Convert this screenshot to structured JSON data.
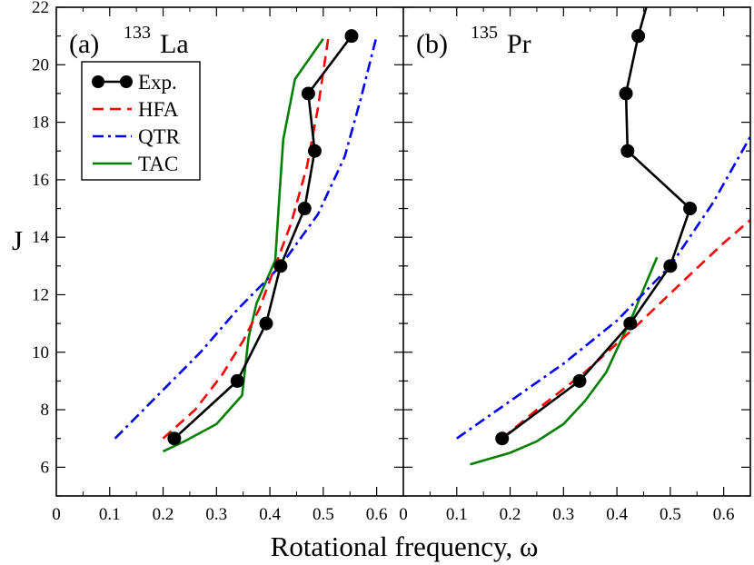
{
  "chart_data": {
    "type": "line",
    "xlabel": "Rotational frequency, ω",
    "ylabel": "J",
    "ylim": [
      5,
      22
    ],
    "y_ticks": [
      6,
      8,
      10,
      12,
      14,
      16,
      18,
      20,
      22
    ],
    "x_tick_values": [
      0,
      0.1,
      0.2,
      0.3,
      0.4,
      0.5,
      0.6
    ],
    "x_tick_labels": [
      "0",
      "0.1",
      "0.2",
      "0.3",
      "0.4",
      "0.5",
      "0.6"
    ],
    "legend": {
      "placement": "top-left of panel (a)",
      "entries": [
        {
          "name": "Exp.",
          "color": "#000000",
          "style": "solid-markers"
        },
        {
          "name": "HFA",
          "color": "#ff0000",
          "style": "dashed"
        },
        {
          "name": "QTR",
          "color": "#0000ff",
          "style": "dashdot"
        },
        {
          "name": "TAC",
          "color": "#008000",
          "style": "solid"
        }
      ]
    },
    "panels": [
      {
        "id": "a",
        "tag": "(a)",
        "mass": "133",
        "nucleus": "La",
        "xlim": [
          0,
          0.65
        ],
        "series": [
          {
            "name": "Exp.",
            "color": "#000000",
            "style": "solid-markers",
            "points": [
              [
                0.221,
                7
              ],
              [
                0.339,
                9
              ],
              [
                0.393,
                11
              ],
              [
                0.42,
                13
              ],
              [
                0.465,
                15
              ],
              [
                0.484,
                17
              ],
              [
                0.472,
                19
              ],
              [
                0.553,
                21
              ]
            ]
          },
          {
            "name": "HFA",
            "color": "#ff0000",
            "style": "dashed",
            "points": [
              [
                0.2,
                7
              ],
              [
                0.26,
                8
              ],
              [
                0.31,
                9.2
              ],
              [
                0.35,
                10.4
              ],
              [
                0.38,
                11.5
              ],
              [
                0.41,
                13
              ],
              [
                0.44,
                14.5
              ],
              [
                0.47,
                16.5
              ],
              [
                0.49,
                18.5
              ],
              [
                0.51,
                21
              ]
            ]
          },
          {
            "name": "QTR",
            "color": "#0000ff",
            "style": "dashdot",
            "points": [
              [
                0.11,
                7
              ],
              [
                0.19,
                8.5
              ],
              [
                0.27,
                10
              ],
              [
                0.34,
                11.5
              ],
              [
                0.42,
                13
              ],
              [
                0.49,
                14.8
              ],
              [
                0.54,
                16.8
              ],
              [
                0.57,
                18.8
              ],
              [
                0.6,
                21
              ]
            ]
          },
          {
            "name": "TAC",
            "color": "#008000",
            "style": "solid",
            "points": [
              [
                0.2,
                6.55
              ],
              [
                0.24,
                6.9
              ],
              [
                0.3,
                7.5
              ],
              [
                0.348,
                8.5
              ],
              [
                0.36,
                10.5
              ],
              [
                0.375,
                11.7
              ],
              [
                0.41,
                13.2
              ],
              [
                0.418,
                15.5
              ],
              [
                0.425,
                17.4
              ],
              [
                0.447,
                19.5
              ],
              [
                0.5,
                20.9
              ]
            ]
          }
        ]
      },
      {
        "id": "b",
        "tag": "(b)",
        "mass": "135",
        "nucleus": "Pr",
        "xlim": [
          0,
          0.65
        ],
        "series": [
          {
            "name": "Exp.",
            "color": "#000000",
            "style": "solid-markers",
            "points": [
              [
                0.185,
                7
              ],
              [
                0.33,
                9
              ],
              [
                0.425,
                11
              ],
              [
                0.5,
                13
              ],
              [
                0.537,
                15
              ],
              [
                0.42,
                17
              ],
              [
                0.417,
                19
              ],
              [
                0.44,
                21
              ],
              [
                0.455,
                22
              ]
            ],
            "markers": [
              [
                0.185,
                7
              ],
              [
                0.33,
                9
              ],
              [
                0.425,
                11
              ],
              [
                0.5,
                13
              ],
              [
                0.537,
                15
              ],
              [
                0.42,
                17
              ],
              [
                0.417,
                19
              ],
              [
                0.44,
                21
              ]
            ]
          },
          {
            "name": "HFA",
            "color": "#ff0000",
            "style": "dashed",
            "points": [
              [
                0.185,
                7
              ],
              [
                0.25,
                8
              ],
              [
                0.34,
                9.3
              ],
              [
                0.43,
                10.8
              ],
              [
                0.52,
                12.4
              ],
              [
                0.6,
                13.8
              ],
              [
                0.65,
                14.6
              ]
            ]
          },
          {
            "name": "QTR",
            "color": "#0000ff",
            "style": "dashdot",
            "points": [
              [
                0.1,
                7
              ],
              [
                0.2,
                8.3
              ],
              [
                0.3,
                9.6
              ],
              [
                0.4,
                11.1
              ],
              [
                0.5,
                13
              ],
              [
                0.58,
                15.2
              ],
              [
                0.65,
                17.5
              ]
            ]
          },
          {
            "name": "TAC",
            "color": "#008000",
            "style": "solid",
            "points": [
              [
                0.125,
                6.1
              ],
              [
                0.2,
                6.5
              ],
              [
                0.25,
                6.9
              ],
              [
                0.3,
                7.5
              ],
              [
                0.34,
                8.3
              ],
              [
                0.38,
                9.3
              ],
              [
                0.41,
                10.5
              ],
              [
                0.43,
                11.3
              ],
              [
                0.45,
                12.2
              ],
              [
                0.475,
                13.3
              ]
            ]
          }
        ]
      }
    ]
  }
}
